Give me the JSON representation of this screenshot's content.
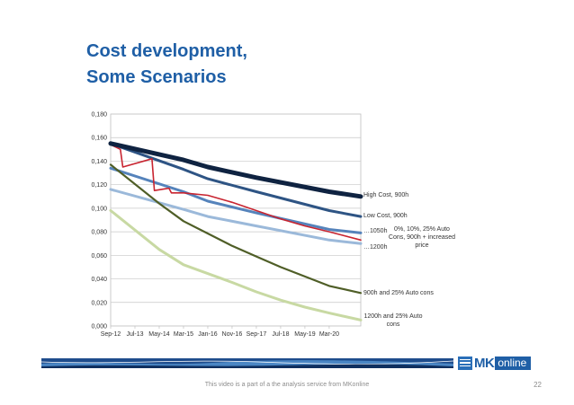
{
  "slide": {
    "title_line1": "Cost development,",
    "title_line2": "Some Scenarios",
    "footnote": "This video is a part of a the analysis service from MKonline",
    "page_number": "22",
    "logo_mk": "MK",
    "logo_online": "online"
  },
  "chart_data": {
    "type": "line",
    "title": "",
    "xlabel": "",
    "ylabel": "",
    "ylim": [
      0,
      0.18
    ],
    "yticks": [
      "0,000",
      "0,020",
      "0,040",
      "0,060",
      "0,080",
      "0,100",
      "0,120",
      "0,140",
      "0,160",
      "0,180"
    ],
    "xtick_labels": [
      "Sep-12",
      "Jul-13",
      "May-14",
      "Mar-15",
      "Jan-16",
      "Nov-16",
      "Sep-17",
      "Jul-18",
      "May-19",
      "Mar-20"
    ],
    "grid": "horizontal",
    "legend": "labels at line ends",
    "series": [
      {
        "name": "High Cost, 900h",
        "color": "#0f2341",
        "x": [
          "Sep-12",
          "Mar-15",
          "Jan-16",
          "Sep-17",
          "Mar-20",
          "Apr-21"
        ],
        "values": [
          0.155,
          0.141,
          0.135,
          0.126,
          0.114,
          0.11
        ]
      },
      {
        "name": "Low  Cost, 900h",
        "color": "#2e5484",
        "x": [
          "Sep-12",
          "Mar-15",
          "Jan-16",
          "Sep-17",
          "Mar-20",
          "Apr-21"
        ],
        "values": [
          0.155,
          0.133,
          0.125,
          0.114,
          0.098,
          0.093
        ]
      },
      {
        "name": "0%, 10%, 25% Auto Cons, 900h + increased price",
        "color": "#c82430",
        "x": [
          "Sep-12",
          "Jan-13",
          "Feb-13",
          "Feb-14",
          "Mar-14",
          "Sep-14",
          "Oct-14",
          "Mar-15",
          "Jan-16",
          "Nov-16",
          "Sep-17",
          "Jul-18",
          "May-19",
          "Mar-20",
          "Apr-21"
        ],
        "values": [
          0.154,
          0.15,
          0.135,
          0.142,
          0.115,
          0.117,
          0.113,
          0.113,
          0.111,
          0.105,
          0.098,
          0.091,
          0.085,
          0.08,
          0.073
        ]
      },
      {
        "name": "…1050h",
        "color": "#5583bb",
        "x": [
          "Sep-12",
          "Mar-15",
          "Jan-16",
          "Sep-17",
          "Mar-20",
          "Apr-21"
        ],
        "values": [
          0.134,
          0.114,
          0.106,
          0.096,
          0.082,
          0.079
        ]
      },
      {
        "name": "…1200h",
        "color": "#9bb9da",
        "x": [
          "Sep-12",
          "Mar-15",
          "Jan-16",
          "Sep-17",
          "Mar-20",
          "Apr-21"
        ],
        "values": [
          0.116,
          0.099,
          0.093,
          0.085,
          0.073,
          0.07
        ]
      },
      {
        "name": "900h and 25% Auto cons",
        "color": "#4f5e27",
        "x": [
          "Sep-12",
          "May-14",
          "Mar-15",
          "Nov-16",
          "Sep-17",
          "Jul-18",
          "May-19",
          "Mar-20",
          "Apr-21"
        ],
        "values": [
          0.137,
          0.104,
          0.089,
          0.068,
          0.059,
          0.05,
          0.042,
          0.034,
          0.028
        ]
      },
      {
        "name": "1200h and 25% Auto cons",
        "color": "#c8d9a3",
        "x": [
          "Sep-12",
          "May-14",
          "Mar-15",
          "Nov-16",
          "Sep-17",
          "Jul-18",
          "May-19",
          "Mar-20",
          "Apr-21"
        ],
        "values": [
          0.098,
          0.065,
          0.052,
          0.037,
          0.029,
          0.022,
          0.016,
          0.011,
          0.005
        ]
      }
    ],
    "label_lines": [
      {
        "lines": [
          "High Cost, 900h"
        ]
      },
      {
        "lines": [
          "Low  Cost, 900h"
        ]
      },
      {
        "lines": [
          "…1050h"
        ]
      },
      {
        "lines": [
          "0%, 10%, 25% Auto",
          "Cons, 900h + increased",
          "price"
        ]
      },
      {
        "lines": [
          "…1200h"
        ]
      },
      {
        "lines": [
          "900h and 25% Auto cons"
        ]
      },
      {
        "lines": [
          "1200h and 25% Auto",
          "cons"
        ]
      }
    ],
    "footer_band_colors": [
      "#1e4c8c",
      "#4a86c4",
      "#0f2f5f",
      "#ffffff"
    ]
  }
}
